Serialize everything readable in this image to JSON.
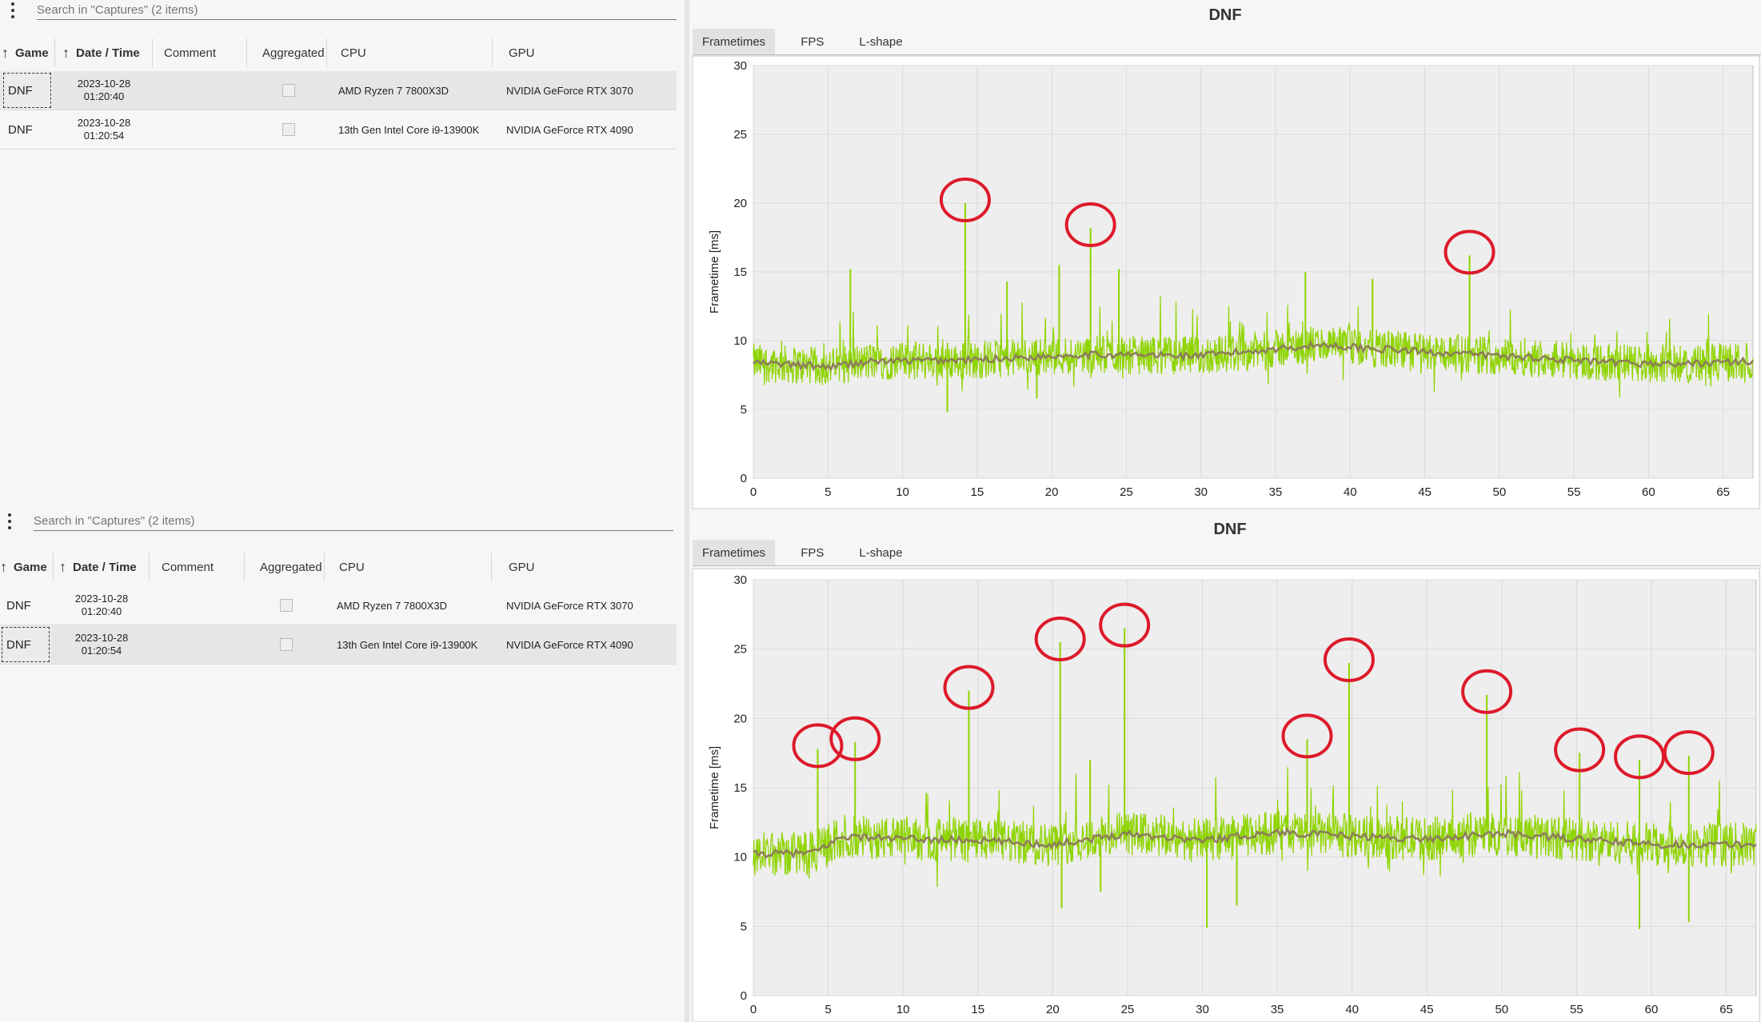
{
  "panels": [
    {
      "search_placeholder": "Search in \"Captures\" (2 items)",
      "columns": {
        "game": "Game",
        "datetime": "Date / Time",
        "comment": "Comment",
        "aggregated": "Aggregated",
        "cpu": "CPU",
        "gpu": "GPU"
      },
      "rows": [
        {
          "game": "DNF",
          "date": "2023-10-28",
          "time": "01:20:40",
          "cpu": "AMD Ryzen 7 7800X3D",
          "gpu": "NVIDIA GeForce RTX 3070",
          "aggregated": false,
          "selected": true
        },
        {
          "game": "DNF",
          "date": "2023-10-28",
          "time": "01:20:54",
          "cpu": "13th Gen Intel Core i9-13900K",
          "gpu": "NVIDIA GeForce RTX 4090",
          "aggregated": false,
          "selected": false
        }
      ],
      "chart_title": "DNF",
      "tabs": [
        "Frametimes",
        "FPS",
        "L-shape"
      ],
      "active_tab": "Frametimes"
    },
    {
      "search_placeholder": "Search in \"Captures\" (2 items)",
      "columns": {
        "game": "Game",
        "datetime": "Date / Time",
        "comment": "Comment",
        "aggregated": "Aggregated",
        "cpu": "CPU",
        "gpu": "GPU"
      },
      "rows": [
        {
          "game": "DNF",
          "date": "2023-10-28",
          "time": "01:20:40",
          "cpu": "AMD Ryzen 7 7800X3D",
          "gpu": "NVIDIA GeForce RTX 3070",
          "aggregated": false,
          "selected": false
        },
        {
          "game": "DNF",
          "date": "2023-10-28",
          "time": "01:20:54",
          "cpu": "13th Gen Intel Core i9-13900K",
          "gpu": "NVIDIA GeForce RTX 4090",
          "aggregated": false,
          "selected": true
        }
      ],
      "chart_title": "DNF",
      "tabs": [
        "Frametimes",
        "FPS",
        "L-shape"
      ],
      "active_tab": "Frametimes"
    }
  ],
  "colors": {
    "raw_series": "#8fd400",
    "moving_average": "#8b7d5a",
    "highlight_circle": "#dd1a2a",
    "grid": "#d9d9d9",
    "plot_bg": "#eeeeee"
  },
  "chart_data": [
    {
      "type": "line",
      "title": "DNF",
      "ylabel": "Frametime [ms]",
      "xlim": [
        0,
        67
      ],
      "ylim": [
        0,
        30
      ],
      "xticks": [
        0,
        5,
        10,
        15,
        20,
        25,
        30,
        35,
        40,
        45,
        50,
        55,
        60,
        65
      ],
      "yticks": [
        0,
        5,
        10,
        15,
        20,
        25,
        30
      ],
      "baseline_profile": [
        [
          0,
          8.4
        ],
        [
          5,
          8.1
        ],
        [
          8,
          8.5
        ],
        [
          15,
          8.6
        ],
        [
          22,
          9.0
        ],
        [
          30,
          8.9
        ],
        [
          35,
          9.4
        ],
        [
          38,
          9.7
        ],
        [
          42,
          9.4
        ],
        [
          48,
          9.0
        ],
        [
          52,
          8.8
        ],
        [
          57,
          8.4
        ],
        [
          62,
          8.3
        ],
        [
          67,
          8.5
        ]
      ],
      "band_amplitude": 1.4,
      "spikes": [
        [
          6.5,
          15.2
        ],
        [
          14.2,
          20.0
        ],
        [
          20.5,
          15.5
        ],
        [
          22.6,
          18.2
        ],
        [
          24.5,
          15.2
        ],
        [
          37.0,
          15.0
        ],
        [
          48.0,
          16.2
        ],
        [
          17.0,
          14.3
        ],
        [
          41.5,
          14.5
        ]
      ],
      "dips": [
        [
          13.0,
          4.8
        ],
        [
          19.0,
          5.8
        ]
      ],
      "highlighted_spikes": [
        [
          14.2,
          20.0
        ],
        [
          22.6,
          18.2
        ],
        [
          48.0,
          16.2
        ]
      ]
    },
    {
      "type": "line",
      "title": "DNF",
      "ylabel": "Frametime [ms]",
      "xlim": [
        0,
        67
      ],
      "ylim": [
        0,
        30
      ],
      "xticks": [
        0,
        5,
        10,
        15,
        20,
        25,
        30,
        35,
        40,
        45,
        50,
        55,
        60,
        65
      ],
      "yticks": [
        0,
        5,
        10,
        15,
        20,
        25,
        30
      ],
      "baseline_profile": [
        [
          0,
          10.2
        ],
        [
          4,
          10.3
        ],
        [
          6,
          11.5
        ],
        [
          10,
          11.3
        ],
        [
          15,
          11.2
        ],
        [
          20,
          10.9
        ],
        [
          25,
          11.7
        ],
        [
          30,
          11.2
        ],
        [
          35,
          11.8
        ],
        [
          40,
          11.5
        ],
        [
          45,
          11.3
        ],
        [
          50,
          11.7
        ],
        [
          55,
          11.3
        ],
        [
          60,
          10.9
        ],
        [
          67,
          10.9
        ]
      ],
      "band_amplitude": 1.6,
      "spikes": [
        [
          4.3,
          17.8
        ],
        [
          6.8,
          18.3
        ],
        [
          14.4,
          22.0
        ],
        [
          20.5,
          25.5
        ],
        [
          24.8,
          26.5
        ],
        [
          37.0,
          18.5
        ],
        [
          39.8,
          24.0
        ],
        [
          49.0,
          21.7
        ],
        [
          55.2,
          17.5
        ],
        [
          59.2,
          17.0
        ],
        [
          62.5,
          17.3
        ],
        [
          22.5,
          17.0
        ]
      ],
      "dips": [
        [
          20.6,
          6.3
        ],
        [
          23.2,
          7.5
        ],
        [
          30.3,
          4.9
        ],
        [
          32.3,
          6.5
        ],
        [
          59.2,
          4.8
        ],
        [
          62.5,
          5.3
        ]
      ],
      "highlighted_spikes": [
        [
          4.3,
          17.8
        ],
        [
          6.8,
          18.3
        ],
        [
          14.4,
          22.0
        ],
        [
          20.5,
          25.5
        ],
        [
          24.8,
          26.5
        ],
        [
          37.0,
          18.5
        ],
        [
          39.8,
          24.0
        ],
        [
          49.0,
          21.7
        ],
        [
          55.2,
          17.5
        ],
        [
          59.2,
          17.0
        ],
        [
          62.5,
          17.3
        ]
      ]
    }
  ]
}
